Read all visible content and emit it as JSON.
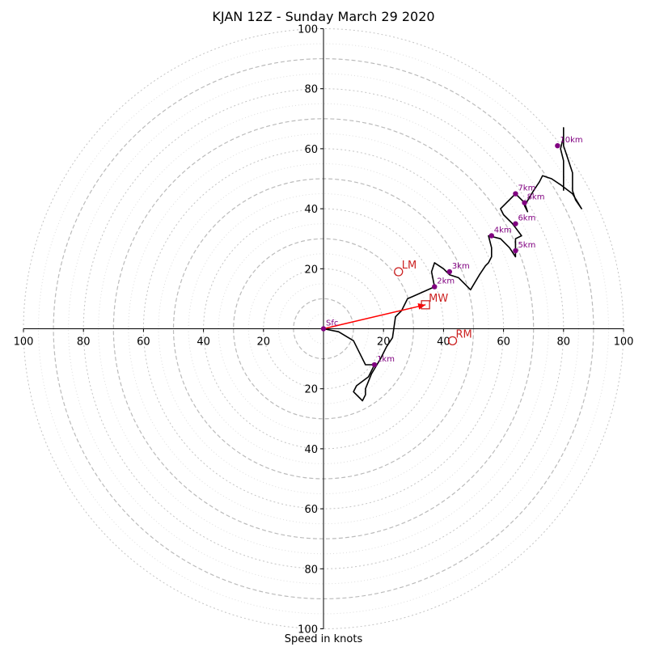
{
  "chart_data": {
    "type": "line",
    "title": "KJAN 12Z - Sunday March 29 2020",
    "xlabel": "Speed in knots",
    "ylabel": "",
    "xlim": [
      -100,
      100
    ],
    "ylim": [
      -100,
      100
    ],
    "rings": {
      "major": [
        10,
        30,
        50,
        70,
        90
      ],
      "minor": [
        20,
        40,
        60,
        80,
        100
      ],
      "faint": [
        5,
        15,
        25,
        35,
        45,
        55,
        65,
        75,
        85,
        95
      ]
    },
    "x_ticks": [
      -100,
      -80,
      -60,
      -40,
      -20,
      20,
      40,
      60,
      80,
      100
    ],
    "x_tick_labels": [
      "100",
      "80",
      "60",
      "40",
      "20",
      "20",
      "40",
      "60",
      "80",
      "100"
    ],
    "y_ticks": [
      100,
      80,
      60,
      40,
      20,
      -20,
      -40,
      -60,
      -80,
      -100
    ],
    "y_tick_labels": [
      "100",
      "80",
      "60",
      "40",
      "20",
      "20",
      "40",
      "60",
      "80",
      "100"
    ],
    "series": [
      {
        "values_xy": [
          [
            0,
            0
          ],
          [
            5,
            -1
          ],
          [
            10,
            -4
          ],
          [
            12,
            -8
          ],
          [
            14,
            -12
          ],
          [
            17,
            -12
          ],
          [
            15,
            -16
          ],
          [
            11,
            -19
          ],
          [
            10,
            -21
          ],
          [
            13,
            -24
          ],
          [
            14,
            -22
          ],
          [
            14,
            -20
          ],
          [
            16,
            -15
          ],
          [
            19,
            -10
          ],
          [
            21,
            -6
          ],
          [
            23,
            -3
          ],
          [
            24,
            4
          ],
          [
            26,
            6
          ],
          [
            28,
            10
          ],
          [
            37,
            14
          ],
          [
            36,
            19
          ],
          [
            37,
            22
          ],
          [
            40,
            20
          ],
          [
            42,
            18
          ],
          [
            45,
            17
          ],
          [
            48,
            14
          ],
          [
            49,
            13
          ],
          [
            52,
            18
          ],
          [
            54,
            21
          ],
          [
            55,
            22
          ],
          [
            56,
            24
          ],
          [
            56,
            27
          ],
          [
            55,
            31
          ],
          [
            59,
            30
          ],
          [
            62,
            27
          ],
          [
            64,
            24
          ],
          [
            64,
            30
          ],
          [
            66,
            31
          ],
          [
            63,
            35
          ],
          [
            60,
            38
          ],
          [
            59,
            40
          ],
          [
            61,
            42
          ],
          [
            64,
            45
          ],
          [
            67,
            42
          ],
          [
            68,
            39
          ],
          [
            67,
            41
          ],
          [
            70,
            46
          ],
          [
            72,
            49
          ],
          [
            73,
            51
          ],
          [
            76,
            50
          ],
          [
            79,
            48
          ],
          [
            83,
            45
          ],
          [
            86,
            40
          ],
          [
            84,
            43
          ],
          [
            83,
            46
          ],
          [
            83,
            52
          ],
          [
            81,
            58
          ],
          [
            80,
            61
          ],
          [
            80,
            65
          ],
          [
            80,
            67
          ],
          [
            80,
            64
          ],
          [
            79,
            60
          ],
          [
            80,
            56
          ],
          [
            80,
            50
          ],
          [
            80,
            46
          ]
        ]
      }
    ],
    "height_markers": [
      {
        "label": "Sfc",
        "x": 0,
        "y": 0
      },
      {
        "label": "1km",
        "x": 17,
        "y": -12
      },
      {
        "label": "2km",
        "x": 37,
        "y": 14
      },
      {
        "label": "3km",
        "x": 42,
        "y": 19
      },
      {
        "label": "4km",
        "x": 56,
        "y": 31
      },
      {
        "label": "5km",
        "x": 64,
        "y": 26
      },
      {
        "label": "6km",
        "x": 64,
        "y": 35
      },
      {
        "label": "7km",
        "x": 64,
        "y": 45
      },
      {
        "label": "8km",
        "x": 67,
        "y": 42
      },
      {
        "label": "10km",
        "x": 78,
        "y": 61
      }
    ],
    "storm_motion": [
      {
        "label": "LM",
        "x": 25,
        "y": 19,
        "marker": "circle"
      },
      {
        "label": "MW",
        "x": 34,
        "y": 8,
        "marker": "square"
      },
      {
        "label": "RM",
        "x": 43,
        "y": -4,
        "marker": "circle"
      }
    ],
    "mean_wind_vector": {
      "from": [
        0,
        0
      ],
      "to": [
        34,
        8
      ]
    },
    "colors": {
      "hodograph": "#000000",
      "height_markers": "#800080",
      "storm_motion": "#cc2222",
      "vector": "#ff0000",
      "rings": "#bbbbbb"
    },
    "grid": true
  }
}
